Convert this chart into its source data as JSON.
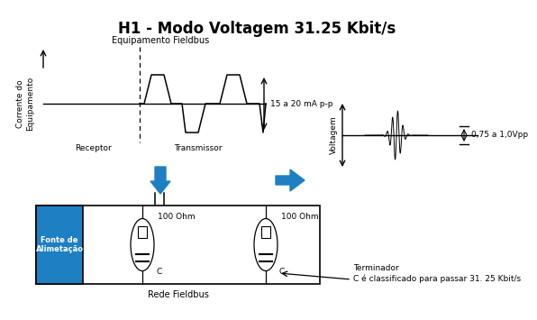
{
  "title": "H1 - Modo Voltagem 31.25 Kbit/s",
  "title_fontsize": 12,
  "title_fontweight": "bold",
  "bg_color": "#ffffff",
  "text_color": "#000000",
  "blue_color": "#1e7fc2",
  "labels": {
    "equipamento": "Equipamento Fieldbus",
    "corrente": "Corrente do\nEquipamento",
    "receptor": "Receptor",
    "transmissor": "Transmissor",
    "mA": "15 a 20 mA p-p",
    "voltagem_label": "Voltagem",
    "vpp": "0,75 a 1,0Vpp",
    "fonte": "Fonte de\nAlimetação",
    "ohm1": "100 Ohm",
    "ohm2": "100 Ohm",
    "c1": "C",
    "c2": "C",
    "rede": "Rede Fieldbus",
    "terminador": "Terminador",
    "classificado": "C é classificado para passar 31. 25 Kbit/s"
  }
}
